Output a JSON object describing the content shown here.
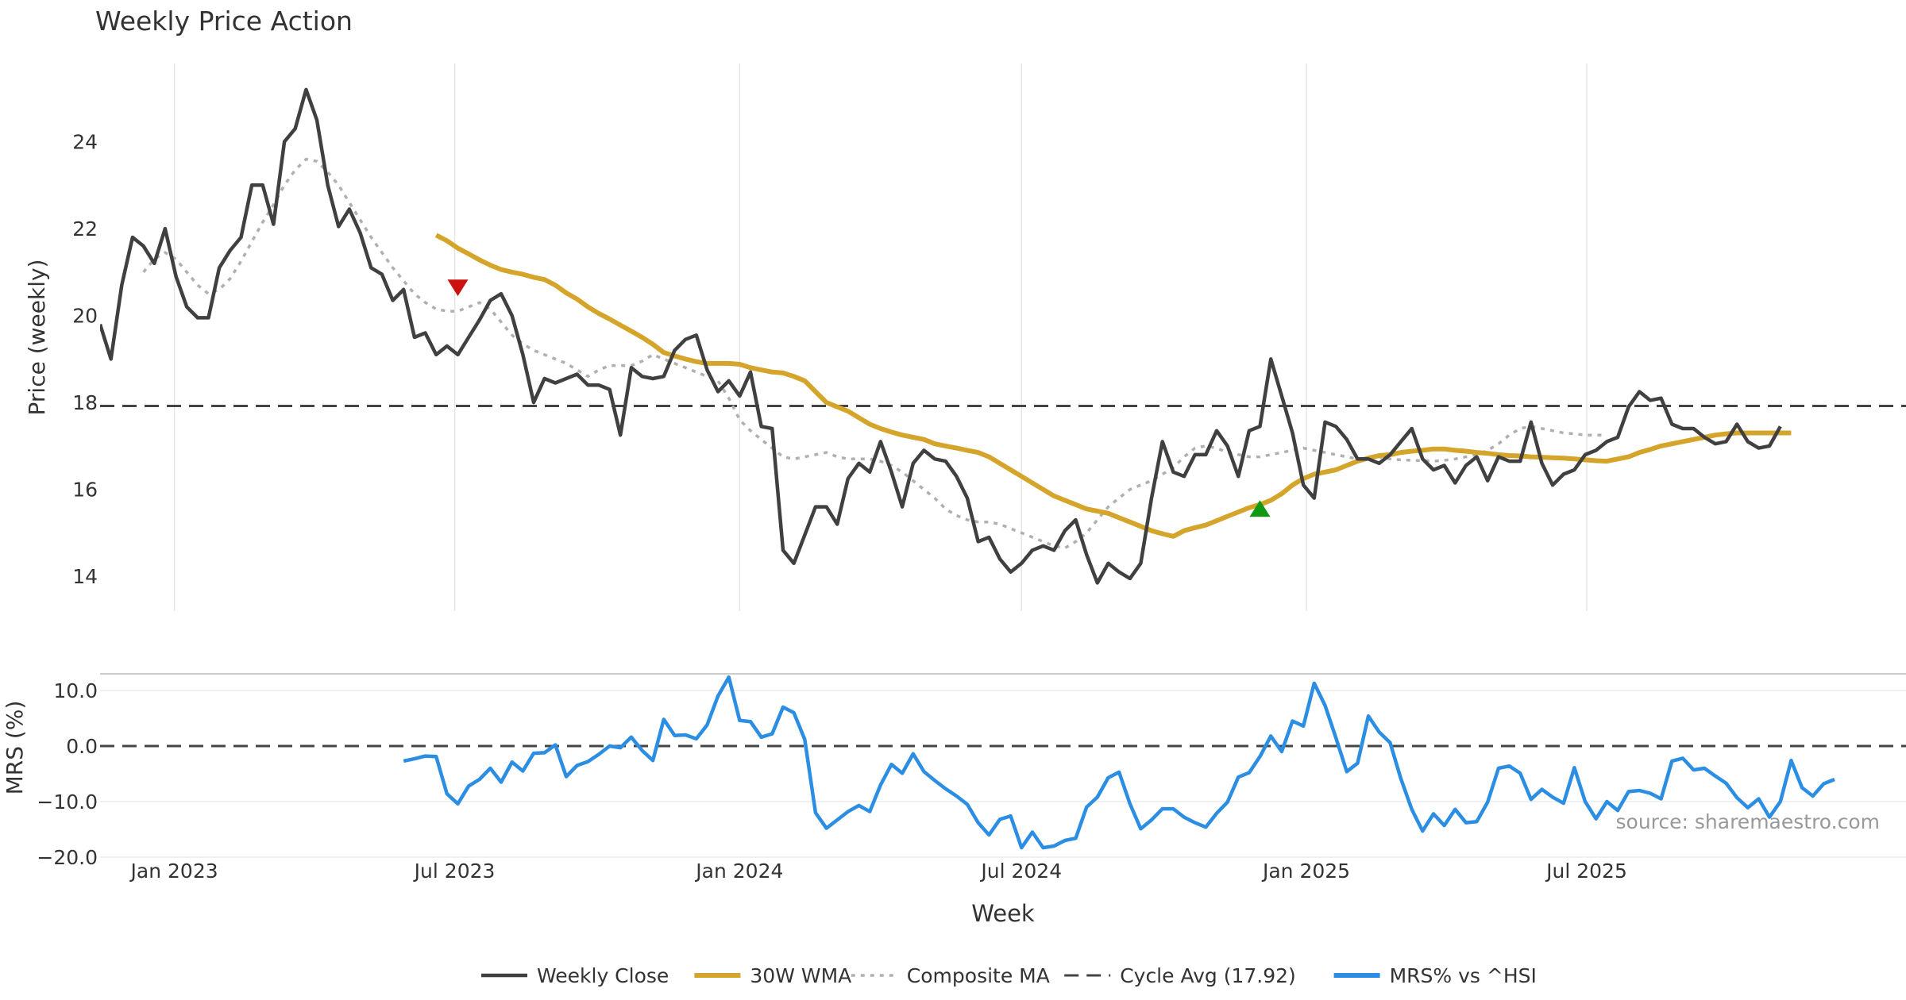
{
  "chart_data": [
    {
      "type": "line",
      "title": "Weekly Price Action",
      "xlabel": "",
      "ylabel": "Price (weekly)",
      "ylim": [
        13.2,
        25.8
      ],
      "yticks": [
        14,
        16,
        18,
        20,
        22,
        24
      ],
      "x_start": "2022-11-14",
      "x_step_days": 7,
      "grid": "x",
      "cycle_avg": 17.92,
      "markers": [
        {
          "name": "sell-signal",
          "week_index": 33,
          "value": 20.65,
          "shape": "triangle-down",
          "color": "#cc1111"
        },
        {
          "name": "buy-signal",
          "week_index": 107,
          "value": 15.55,
          "shape": "triangle-up",
          "color": "#119911"
        }
      ],
      "series": [
        {
          "name": "Weekly Close",
          "color": "#404040",
          "style": "solid",
          "start_index": 0,
          "values": [
            19.8,
            19.0,
            20.7,
            21.8,
            21.6,
            21.2,
            22.0,
            20.9,
            20.2,
            19.95,
            19.95,
            21.1,
            21.5,
            21.8,
            23.0,
            23.0,
            22.1,
            24.0,
            24.3,
            25.2,
            24.5,
            23.0,
            22.05,
            22.45,
            21.9,
            21.1,
            20.95,
            20.35,
            20.6,
            19.5,
            19.6,
            19.1,
            19.3,
            19.1,
            19.5,
            19.9,
            20.35,
            20.5,
            20.0,
            19.1,
            18.0,
            18.55,
            18.45,
            18.55,
            18.65,
            18.4,
            18.4,
            18.3,
            17.25,
            18.8,
            18.6,
            18.55,
            18.6,
            19.2,
            19.45,
            19.55,
            18.75,
            18.25,
            18.5,
            18.15,
            18.7,
            17.45,
            17.4,
            14.6,
            14.3,
            14.95,
            15.6,
            15.6,
            15.2,
            16.25,
            16.6,
            16.4,
            17.1,
            16.4,
            15.6,
            16.6,
            16.9,
            16.7,
            16.65,
            16.3,
            15.8,
            14.8,
            14.9,
            14.4,
            14.1,
            14.3,
            14.6,
            14.7,
            14.6,
            15.05,
            15.3,
            14.5,
            13.85,
            14.3,
            14.1,
            13.95,
            14.3,
            15.8,
            17.1,
            16.4,
            16.3,
            16.8,
            16.8,
            17.35,
            17.0,
            16.3,
            17.35,
            17.45,
            19.0,
            18.15,
            17.3,
            16.1,
            15.8,
            17.55,
            17.45,
            17.15,
            16.7,
            16.7,
            16.6,
            16.8,
            17.1,
            17.4,
            16.7,
            16.45,
            16.55,
            16.15,
            16.55,
            16.75,
            16.2,
            16.75,
            16.65,
            16.65,
            17.55,
            16.6,
            16.1,
            16.35,
            16.45,
            16.8,
            16.9,
            17.1,
            17.2,
            17.9,
            18.25,
            18.05,
            18.1,
            17.5,
            17.4,
            17.4,
            17.2,
            17.05,
            17.1,
            17.5,
            17.1,
            16.95,
            17.0,
            17.45
          ]
        },
        {
          "name": "30W WMA",
          "color": "#d4a52a",
          "style": "solid",
          "start_index": 31,
          "values": [
            21.85,
            21.72,
            21.55,
            21.42,
            21.28,
            21.16,
            21.06,
            21.0,
            20.95,
            20.88,
            20.83,
            20.7,
            20.52,
            20.38,
            20.2,
            20.05,
            19.92,
            19.78,
            19.64,
            19.5,
            19.34,
            19.15,
            19.07,
            19.0,
            18.94,
            18.9,
            18.9,
            18.9,
            18.88,
            18.8,
            18.75,
            18.7,
            18.68,
            18.6,
            18.5,
            18.25,
            18.0,
            17.9,
            17.8,
            17.65,
            17.5,
            17.4,
            17.32,
            17.25,
            17.2,
            17.15,
            17.05,
            17.0,
            16.95,
            16.9,
            16.85,
            16.75,
            16.6,
            16.45,
            16.3,
            16.15,
            16.0,
            15.85,
            15.75,
            15.65,
            15.55,
            15.5,
            15.45,
            15.35,
            15.25,
            15.15,
            15.05,
            14.98,
            14.92,
            15.05,
            15.12,
            15.18,
            15.28,
            15.38,
            15.48,
            15.58,
            15.65,
            15.75,
            15.9,
            16.1,
            16.25,
            16.35,
            16.4,
            16.45,
            16.55,
            16.65,
            16.72,
            16.78,
            16.8,
            16.85,
            16.88,
            16.9,
            16.93,
            16.93,
            16.9,
            16.88,
            16.85,
            16.83,
            16.8,
            16.78,
            16.77,
            16.75,
            16.74,
            16.73,
            16.72,
            16.7,
            16.68,
            16.66,
            16.65,
            16.7,
            16.75,
            16.85,
            16.92,
            17.0,
            17.05,
            17.1,
            17.15,
            17.2,
            17.25,
            17.28,
            17.3,
            17.3,
            17.3,
            17.3,
            17.3,
            17.3
          ]
        },
        {
          "name": "Composite MA",
          "color": "#b0b0b0",
          "style": "dotted",
          "start_index": 4,
          "values": [
            21.0,
            21.3,
            21.45,
            21.3,
            21.0,
            20.7,
            20.5,
            20.6,
            20.85,
            21.25,
            21.7,
            22.15,
            22.55,
            23.0,
            23.35,
            23.6,
            23.55,
            23.3,
            23.0,
            22.6,
            22.2,
            21.8,
            21.45,
            21.1,
            20.8,
            20.5,
            20.3,
            20.15,
            20.1,
            20.1,
            20.2,
            20.3,
            20.15,
            19.85,
            19.55,
            19.35,
            19.2,
            19.1,
            19.0,
            18.9,
            18.75,
            18.6,
            18.75,
            18.85,
            18.85,
            18.85,
            18.95,
            19.1,
            19.0,
            18.9,
            18.8,
            18.7,
            18.6,
            18.5,
            18.1,
            17.6,
            17.35,
            17.15,
            16.95,
            16.75,
            16.7,
            16.75,
            16.8,
            16.85,
            16.75,
            16.7,
            16.7,
            16.7,
            16.65,
            16.55,
            16.4,
            16.2,
            16.0,
            15.8,
            15.55,
            15.4,
            15.3,
            15.25,
            15.25,
            15.2,
            15.1,
            15.0,
            14.9,
            14.8,
            14.7,
            14.65,
            14.8,
            15.0,
            15.3,
            15.6,
            15.8,
            16.0,
            16.1,
            16.2,
            16.35,
            16.5,
            16.75,
            16.95,
            17.0,
            16.95,
            16.85,
            16.8,
            16.75,
            16.75,
            16.8,
            16.85,
            16.9,
            16.95,
            16.9,
            16.85,
            16.8,
            16.75,
            16.7,
            16.7,
            16.75,
            16.7,
            16.68,
            16.67,
            16.66,
            16.65,
            16.67,
            16.7,
            16.75,
            16.8,
            16.9,
            17.05,
            17.25,
            17.4,
            17.45,
            17.4,
            17.35,
            17.3,
            17.28,
            17.25,
            17.25,
            17.25
          ]
        }
      ]
    },
    {
      "type": "line",
      "title": "",
      "xlabel": "Week",
      "ylabel": "MRS (%)",
      "ylim": [
        -20.0,
        13.0
      ],
      "yticks": [
        -20,
        -10,
        0,
        10
      ],
      "ytick_labels": [
        "−20.0",
        "−10.0",
        "0.0",
        "10.0"
      ],
      "x_start": "2022-11-14",
      "x_step_days": 7,
      "grid": "y",
      "zero_line": 0,
      "xticks": [
        "Jan 2023",
        "Jul 2023",
        "Jan 2024",
        "Jul 2024",
        "Jan 2025",
        "Jul 2025"
      ],
      "xtick_dates": [
        "2023-01-01",
        "2023-07-01",
        "2024-01-01",
        "2024-07-01",
        "2025-01-01",
        "2025-07-01"
      ],
      "annotation": "source: sharemaestro.com",
      "series": [
        {
          "name": "MRS% vs ^HSI",
          "color": "#2b8ee3",
          "style": "solid",
          "start_index": 28,
          "values": [
            -2.7,
            -2.3,
            -1.8,
            -1.9,
            -8.6,
            -10.4,
            -7.2,
            -6.0,
            -4.0,
            -6.5,
            -2.9,
            -4.5,
            -1.3,
            -1.2,
            0.2,
            -5.5,
            -3.5,
            -2.8,
            -1.5,
            0.0,
            -0.3,
            1.6,
            -0.8,
            -2.6,
            4.8,
            1.9,
            2.0,
            1.3,
            3.8,
            9.0,
            12.4,
            4.6,
            4.4,
            1.6,
            2.2,
            7.0,
            6.0,
            1.2,
            -12.0,
            -14.8,
            -13.3,
            -11.8,
            -10.7,
            -11.8,
            -7.0,
            -3.3,
            -4.9,
            -1.4,
            -4.6,
            -6.2,
            -7.7,
            -9.0,
            -10.5,
            -13.8,
            -16.0,
            -13.2,
            -12.6,
            -18.3,
            -15.5,
            -18.3,
            -18.0,
            -17.0,
            -16.6,
            -11.0,
            -9.2,
            -5.7,
            -4.7,
            -10.4,
            -14.9,
            -13.3,
            -11.3,
            -11.3,
            -12.8,
            -13.8,
            -14.6,
            -12.1,
            -10.1,
            -5.6,
            -4.8,
            -1.9,
            1.8,
            -1.0,
            4.5,
            3.6,
            11.3,
            7.3,
            1.5,
            -4.6,
            -3.1,
            5.4,
            2.5,
            0.6,
            -5.9,
            -11.4,
            -15.3,
            -12.2,
            -14.3,
            -11.4,
            -13.8,
            -13.6,
            -10.1,
            -4.0,
            -3.6,
            -4.9,
            -9.6,
            -7.8,
            -9.2,
            -10.3,
            -3.9,
            -10.0,
            -13.1,
            -10.0,
            -11.6,
            -8.2,
            -8.0,
            -8.5,
            -9.5,
            -2.7,
            -2.2,
            -4.3,
            -4.0,
            -5.4,
            -6.7,
            -9.3,
            -11.1,
            -9.5,
            -12.8,
            -10.0,
            -2.6,
            -7.5,
            -9.0,
            -6.8,
            -6.0
          ]
        }
      ]
    }
  ]
}
